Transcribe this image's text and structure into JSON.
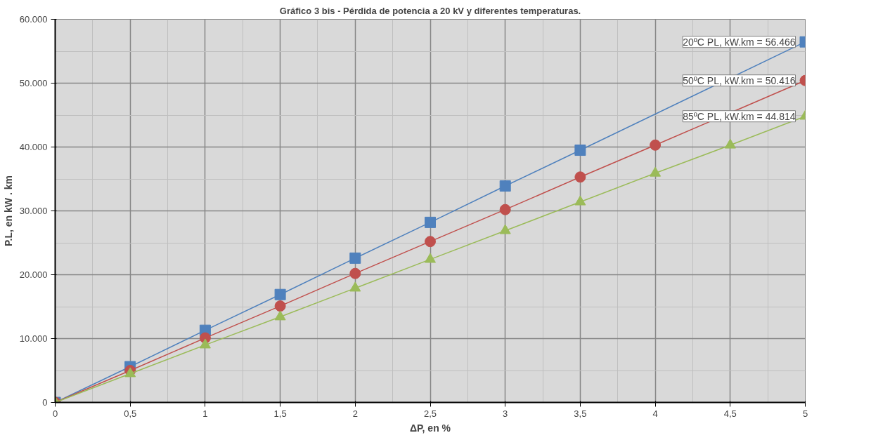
{
  "chart_data": {
    "type": "line",
    "title": "Gráfico 3 bis - Pérdida de potencia a 20 kV y diferentes temperaturas.",
    "xlabel": "ΔP, en %",
    "ylabel": "P.L, en kW . km",
    "x": [
      0,
      0.5,
      1,
      1.5,
      2,
      2.5,
      3,
      3.5,
      4,
      4.5,
      5
    ],
    "series": [
      {
        "name": null,
        "color": "#4f81bd",
        "marker": "square",
        "values": [
          0,
          5600,
          11300,
          16900,
          22600,
          28200,
          33900,
          39500,
          null,
          null,
          56466
        ],
        "value_labels": [
          null,
          null,
          null,
          null,
          null,
          null,
          null,
          null,
          null,
          null,
          "20ºC PL, kW.km = 56.466"
        ]
      },
      {
        "name": null,
        "color": "#c0504d",
        "marker": "circle",
        "values": [
          0,
          5000,
          10100,
          15100,
          20200,
          25200,
          30200,
          35300,
          40300,
          null,
          50416
        ],
        "value_labels": [
          null,
          null,
          null,
          null,
          null,
          null,
          null,
          null,
          null,
          null,
          "50ºC PL, kW.km = 50.416"
        ]
      },
      {
        "name": null,
        "color": "#9bbb59",
        "marker": "triangle",
        "values": [
          0,
          4500,
          9000,
          13400,
          17900,
          22400,
          26900,
          31400,
          35900,
          40300,
          44814
        ],
        "value_labels": [
          null,
          null,
          null,
          null,
          null,
          null,
          null,
          null,
          null,
          null,
          "85ºC PL, kW.km = 44.814"
        ]
      }
    ],
    "xlim": [
      0,
      5
    ],
    "ylim": [
      0,
      60000
    ],
    "xticks": [
      0,
      {
        "value": 0.5,
        "label": "0,5"
      },
      1,
      {
        "value": 1.5,
        "label": "1,5"
      },
      2,
      {
        "value": 2.5,
        "label": "2,5"
      },
      3,
      {
        "value": 3.5,
        "label": "3,5"
      },
      4,
      {
        "value": 4.5,
        "label": "4,5"
      },
      5
    ],
    "yticks": [
      0,
      {
        "value": 10000,
        "label": "10.000"
      },
      {
        "value": 20000,
        "label": "20.000"
      },
      {
        "value": 30000,
        "label": "30.000"
      },
      {
        "value": 40000,
        "label": "40.000"
      },
      {
        "value": 50000,
        "label": "50.000"
      },
      {
        "value": 60000,
        "label": "60.000"
      }
    ],
    "grid": true
  }
}
